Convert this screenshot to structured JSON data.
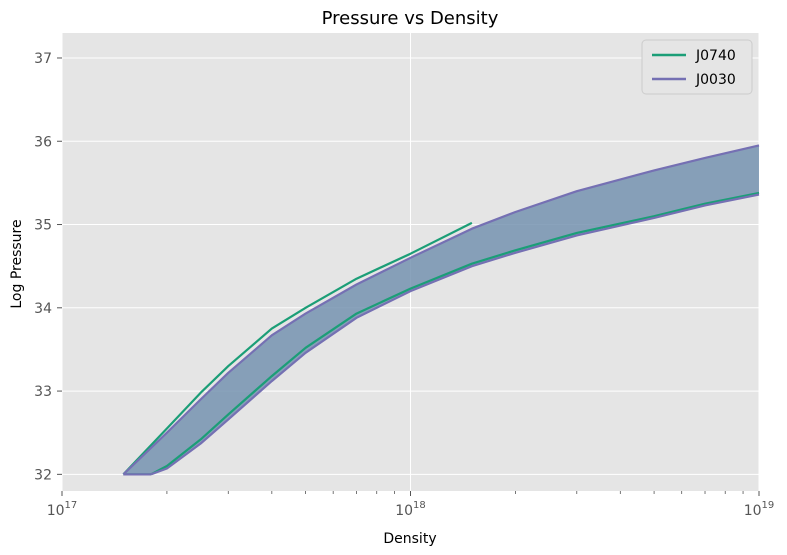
{
  "chart_data": {
    "type": "line",
    "title": "Pressure vs Density",
    "xlabel": "Density",
    "ylabel": "Log Pressure",
    "xscale": "log",
    "xlim": [
      1e+17,
      1e+19
    ],
    "ylim": [
      31.8,
      37.3
    ],
    "x_ticks": [
      {
        "base": "10",
        "exp": "17"
      },
      {
        "base": "10",
        "exp": "18"
      },
      {
        "base": "10",
        "exp": "19"
      }
    ],
    "y_ticks": [
      "32",
      "33",
      "34",
      "35",
      "36",
      "37"
    ],
    "grid": true,
    "legend_position": "top-right",
    "band_color": "#7593b0",
    "series": [
      {
        "name": "J0740",
        "color": "#1b9e77",
        "upper": [
          [
            1.5e+17,
            32.0
          ],
          [
            2e+17,
            32.55
          ],
          [
            2.5e+17,
            32.98
          ],
          [
            3e+17,
            33.3
          ],
          [
            4e+17,
            33.75
          ],
          [
            5e+17,
            34.0
          ],
          [
            7e+17,
            34.35
          ],
          [
            1e+18,
            34.65
          ],
          [
            1.5e+18,
            35.02
          ]
        ],
        "lower": [
          [
            1.8e+17,
            32.0
          ],
          [
            2e+17,
            32.1
          ],
          [
            2.5e+17,
            32.42
          ],
          [
            3e+17,
            32.72
          ],
          [
            4e+17,
            33.18
          ],
          [
            5e+17,
            33.52
          ],
          [
            7e+17,
            33.93
          ],
          [
            1e+18,
            34.23
          ],
          [
            1.5e+18,
            34.53
          ],
          [
            2e+18,
            34.69
          ],
          [
            3e+18,
            34.9
          ],
          [
            5e+18,
            35.1
          ],
          [
            7e+18,
            35.25
          ],
          [
            1e+19,
            35.38
          ]
        ]
      },
      {
        "name": "J0030",
        "color": "#7570b3",
        "upper": [
          [
            1.5e+17,
            32.0
          ],
          [
            2e+17,
            32.5
          ],
          [
            2.5e+17,
            32.9
          ],
          [
            3e+17,
            33.22
          ],
          [
            4e+17,
            33.67
          ],
          [
            5e+17,
            33.93
          ],
          [
            7e+17,
            34.28
          ],
          [
            1e+18,
            34.6
          ],
          [
            1.5e+18,
            34.95
          ],
          [
            2e+18,
            35.15
          ],
          [
            3e+18,
            35.4
          ],
          [
            5e+18,
            35.65
          ],
          [
            7e+18,
            35.8
          ],
          [
            1e+19,
            35.95
          ]
        ],
        "lower": [
          [
            1.8e+17,
            32.0
          ],
          [
            2e+17,
            32.07
          ],
          [
            2.5e+17,
            32.37
          ],
          [
            3e+17,
            32.66
          ],
          [
            4e+17,
            33.12
          ],
          [
            5e+17,
            33.46
          ],
          [
            7e+17,
            33.88
          ],
          [
            1e+18,
            34.2
          ],
          [
            1.5e+18,
            34.5
          ],
          [
            2e+18,
            34.66
          ],
          [
            3e+18,
            34.87
          ],
          [
            5e+18,
            35.08
          ],
          [
            7e+18,
            35.23
          ],
          [
            1e+19,
            35.36
          ]
        ]
      }
    ]
  }
}
